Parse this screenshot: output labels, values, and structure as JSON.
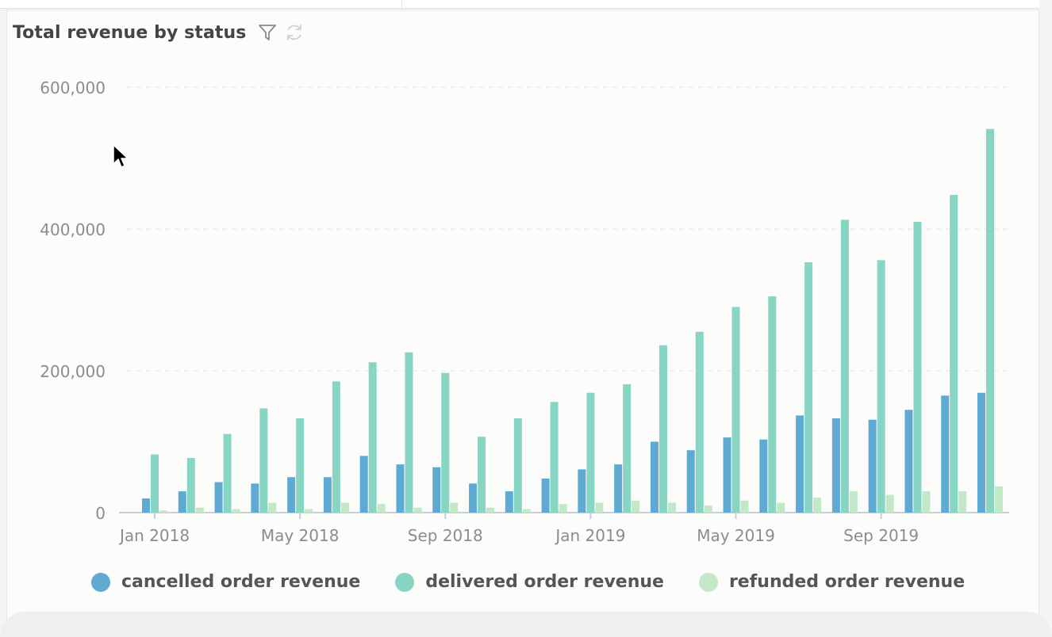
{
  "card": {
    "title": "Total revenue by status",
    "icons": [
      "filter-icon",
      "refresh-icon"
    ]
  },
  "chart_data": {
    "type": "bar",
    "title": "Total revenue by status",
    "xlabel": "",
    "ylabel": "",
    "ylim": [
      0,
      600000
    ],
    "y_ticks": [
      "0",
      "200,000",
      "400,000",
      "600,000"
    ],
    "x_ticks": [
      "Jan 2018",
      "May 2018",
      "Sep 2018",
      "Jan 2019",
      "May 2019",
      "Sep 2019"
    ],
    "categories": [
      "2018-01",
      "2018-02",
      "2018-03",
      "2018-04",
      "2018-05",
      "2018-06",
      "2018-07",
      "2018-08",
      "2018-09",
      "2018-10",
      "2018-11",
      "2018-12",
      "2019-01",
      "2019-02",
      "2019-03",
      "2019-04",
      "2019-05",
      "2019-06",
      "2019-07",
      "2019-08",
      "2019-09",
      "2019-10",
      "2019-11",
      "2019-12"
    ],
    "grid": true,
    "legend": "bottom",
    "series": [
      {
        "name": "cancelled order revenue",
        "color": "#5faad3",
        "values": [
          20000,
          30000,
          43000,
          41000,
          50000,
          50000,
          80000,
          68000,
          64000,
          41000,
          30000,
          48000,
          61000,
          68000,
          100000,
          88000,
          106000,
          103000,
          137000,
          133000,
          131000,
          145000,
          165000,
          169000
        ]
      },
      {
        "name": "delivered order revenue",
        "color": "#89d5c3",
        "values": [
          82000,
          77000,
          111000,
          147000,
          133000,
          185000,
          212000,
          226000,
          197000,
          107000,
          133000,
          156000,
          169000,
          181000,
          236000,
          255000,
          290000,
          305000,
          353000,
          413000,
          356000,
          410000,
          448000,
          541000
        ]
      },
      {
        "name": "refunded order revenue",
        "color": "#c3e8c8",
        "values": [
          3000,
          7000,
          5000,
          14000,
          5000,
          14000,
          12000,
          7000,
          14000,
          7000,
          5000,
          12000,
          14000,
          17000,
          14000,
          10000,
          17000,
          14000,
          21000,
          30000,
          25000,
          30000,
          30000,
          37000
        ]
      }
    ]
  },
  "legend": {
    "items": [
      {
        "label": "cancelled order revenue",
        "color": "#5faad3"
      },
      {
        "label": "delivered order revenue",
        "color": "#89d5c3"
      },
      {
        "label": "refunded order revenue",
        "color": "#c3e8c8"
      }
    ]
  }
}
